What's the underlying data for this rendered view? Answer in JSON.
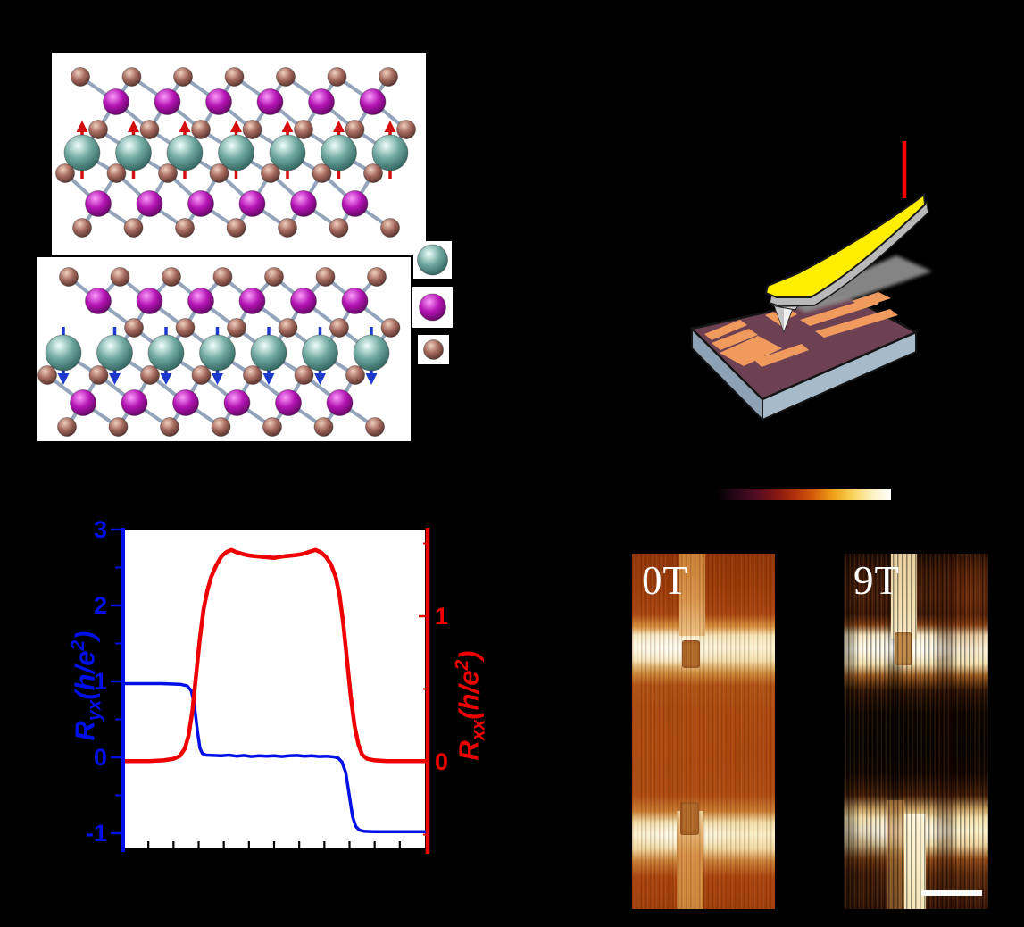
{
  "palette": {
    "background": "#000000",
    "blue": "#0010e6",
    "red": "#ee0000",
    "laser": "#ff0000",
    "cantilever_yellow": "#ffee00",
    "substrate_top": "#6d4152",
    "electrode_orange": "#f09a5e",
    "substrate_side": "#a7bac9"
  },
  "crystal": {
    "bond_color": "#8fa0b8",
    "spacing": 57.5,
    "atom_types": {
      "teal": {
        "r": 20,
        "stops": [
          "#f0fffc",
          "#6fa8a0",
          "#2f615c"
        ]
      },
      "purple": {
        "r": 14.5,
        "stops": [
          "#fb9bfb",
          "#b414b4",
          "#5e065e"
        ]
      },
      "brown": {
        "r": 10.5,
        "stops": [
          "#f0d0c0",
          "#a56a5e",
          "#53302a"
        ]
      }
    },
    "panels": [
      {
        "name": "layer-spins-up",
        "arrow_dir": "up",
        "arrow_color": "#d40f0f",
        "rows": [
          {
            "type": "brown",
            "y": 86,
            "x0": 90,
            "n": 7
          },
          {
            "type": "purple",
            "y": 114,
            "x0": 130,
            "n": 6
          },
          {
            "type": "brown",
            "y": 145,
            "x0": 110,
            "n": 7
          },
          {
            "type": "teal",
            "y": 171,
            "x0": 92,
            "n": 7,
            "arrows": true
          },
          {
            "type": "brown",
            "y": 194,
            "x0": 73,
            "n": 7
          },
          {
            "type": "purple",
            "y": 228,
            "x0": 110,
            "n": 6
          },
          {
            "type": "brown",
            "y": 255,
            "x0": 92,
            "n": 7
          }
        ]
      },
      {
        "name": "layer-spins-down",
        "arrow_dir": "down",
        "arrow_color": "#1c39cc",
        "rows": [
          {
            "type": "brown",
            "y": 310,
            "x0": 77,
            "n": 7
          },
          {
            "type": "purple",
            "y": 337,
            "x0": 110,
            "n": 6
          },
          {
            "type": "brown",
            "y": 367,
            "x0": 150,
            "n": 6
          },
          {
            "type": "teal",
            "y": 395,
            "x0": 71,
            "n": 7,
            "arrows": true
          },
          {
            "type": "brown",
            "y": 420,
            "x0": 53,
            "n": 7
          },
          {
            "type": "purple",
            "y": 451,
            "x0": 93,
            "n": 6
          },
          {
            "type": "brown",
            "y": 478,
            "x0": 75,
            "n": 7
          }
        ]
      }
    ],
    "legend": [
      {
        "type": "teal",
        "r": 17
      },
      {
        "type": "purple",
        "r": 15
      },
      {
        "type": "brown",
        "r": 11
      }
    ]
  },
  "colorbar": {
    "stops": [
      "#000000",
      "#2a0717",
      "#4f0d22",
      "#801513",
      "#b0300c",
      "#d65d0a",
      "#eea016",
      "#f8d258",
      "#fdf0c0",
      "#ffffff"
    ]
  },
  "mfm": {
    "panels": [
      {
        "label": "0T"
      },
      {
        "label": "9T",
        "scale_bar": true
      }
    ]
  },
  "chart_data": {
    "type": "line",
    "title": "",
    "grid": false,
    "x_axis": {
      "label": "",
      "min": -6,
      "max": 6,
      "ticks": [
        -5,
        -4,
        -3,
        -2,
        -1,
        0,
        1,
        2,
        3,
        4,
        5
      ],
      "tick_labels_visible": false
    },
    "left_axis": {
      "label": {
        "main": "R",
        "sub": "yx",
        "open": "(h/e",
        "sup": "2",
        "close": ")"
      },
      "color": "#0010e6",
      "max": 3,
      "min": -1.22,
      "ticks": [
        3,
        2,
        1,
        0,
        -1
      ],
      "minor_ticks": [
        2.5,
        1.5,
        0.5,
        -0.5
      ]
    },
    "right_axis": {
      "label": {
        "main": "R",
        "sub": "xx",
        "open": "(h/e",
        "sup": "2",
        "close": ")"
      },
      "color": "#ee0000",
      "max": 1.6,
      "min": -0.61,
      "ticks": [
        1,
        0
      ],
      "minor_ticks": [
        1.5,
        0.5,
        -0.5
      ]
    },
    "series": [
      {
        "name": "Ryx",
        "axis": "left",
        "color": "#0010e6",
        "width": 3.5,
        "points": [
          [
            -6,
            0.97
          ],
          [
            -4.5,
            0.97
          ],
          [
            -4,
            0.965
          ],
          [
            -3.7,
            0.96
          ],
          [
            -3.45,
            0.94
          ],
          [
            -3.3,
            0.88
          ],
          [
            -3.18,
            0.72
          ],
          [
            -3.05,
            0.35
          ],
          [
            -2.95,
            0.12
          ],
          [
            -2.85,
            0.05
          ],
          [
            -2.7,
            0.03
          ],
          [
            -2.4,
            0.025
          ],
          [
            -2.1,
            0.02
          ],
          [
            -1.8,
            0.03
          ],
          [
            -1.5,
            0.015
          ],
          [
            -1.2,
            0.025
          ],
          [
            -0.9,
            0.01
          ],
          [
            -0.6,
            0.02
          ],
          [
            -0.3,
            0.015
          ],
          [
            0,
            0.02
          ],
          [
            0.3,
            0.01
          ],
          [
            0.6,
            0.02
          ],
          [
            0.9,
            0.025
          ],
          [
            1.2,
            0.015
          ],
          [
            1.5,
            0.02
          ],
          [
            1.8,
            0.01
          ],
          [
            2.1,
            0.015
          ],
          [
            2.4,
            0.005
          ],
          [
            2.55,
            -0.01
          ],
          [
            2.7,
            -0.06
          ],
          [
            2.85,
            -0.2
          ],
          [
            3,
            -0.52
          ],
          [
            3.12,
            -0.78
          ],
          [
            3.25,
            -0.91
          ],
          [
            3.4,
            -0.96
          ],
          [
            3.6,
            -0.975
          ],
          [
            4,
            -0.98
          ],
          [
            5,
            -0.98
          ],
          [
            6,
            -0.98
          ]
        ]
      },
      {
        "name": "Rxx",
        "axis": "right",
        "color": "#ee0000",
        "width": 4.5,
        "points": [
          [
            -6,
            0.005
          ],
          [
            -5,
            0.005
          ],
          [
            -4.4,
            0.01
          ],
          [
            -4,
            0.02
          ],
          [
            -3.75,
            0.04
          ],
          [
            -3.55,
            0.09
          ],
          [
            -3.4,
            0.18
          ],
          [
            -3.25,
            0.35
          ],
          [
            -3.1,
            0.6
          ],
          [
            -2.95,
            0.85
          ],
          [
            -2.8,
            1.05
          ],
          [
            -2.65,
            1.18
          ],
          [
            -2.5,
            1.27
          ],
          [
            -2.3,
            1.35
          ],
          [
            -2.1,
            1.41
          ],
          [
            -1.9,
            1.44
          ],
          [
            -1.7,
            1.455
          ],
          [
            -1.5,
            1.44
          ],
          [
            -1.3,
            1.43
          ],
          [
            -1.1,
            1.42
          ],
          [
            -0.9,
            1.415
          ],
          [
            -0.6,
            1.41
          ],
          [
            -0.3,
            1.405
          ],
          [
            0,
            1.4
          ],
          [
            0.3,
            1.41
          ],
          [
            0.6,
            1.415
          ],
          [
            0.9,
            1.42
          ],
          [
            1.2,
            1.43
          ],
          [
            1.45,
            1.445
          ],
          [
            1.65,
            1.455
          ],
          [
            1.85,
            1.44
          ],
          [
            2.05,
            1.41
          ],
          [
            2.25,
            1.36
          ],
          [
            2.45,
            1.27
          ],
          [
            2.6,
            1.15
          ],
          [
            2.75,
            0.95
          ],
          [
            2.9,
            0.7
          ],
          [
            3.05,
            0.45
          ],
          [
            3.2,
            0.25
          ],
          [
            3.35,
            0.12
          ],
          [
            3.5,
            0.05
          ],
          [
            3.7,
            0.02
          ],
          [
            4,
            0.01
          ],
          [
            4.5,
            0.005
          ],
          [
            6,
            0.005
          ]
        ]
      }
    ]
  }
}
